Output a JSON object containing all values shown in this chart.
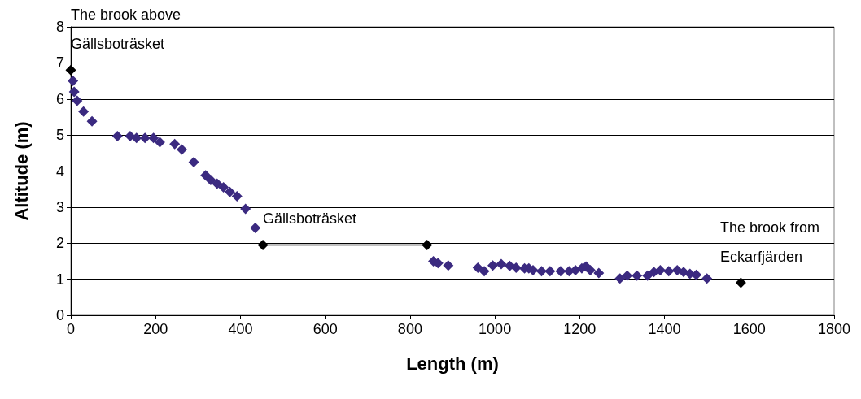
{
  "chart_data": {
    "type": "scatter",
    "xlabel": "Length (m)",
    "ylabel": "Altitude (m)",
    "xlim": [
      0,
      1800
    ],
    "xticks": [
      0,
      200,
      400,
      600,
      800,
      1000,
      1200,
      1400,
      1600,
      1800
    ],
    "ylim": [
      0,
      8
    ],
    "yticks": [
      0,
      1,
      2,
      3,
      4,
      5,
      6,
      7,
      8
    ],
    "grid": "y",
    "marker": "diamond",
    "series": [
      {
        "color": "#3b2a80",
        "x": [
          5,
          8,
          15,
          30,
          50,
          110,
          140,
          155,
          175,
          195,
          210,
          245,
          262,
          290,
          318,
          330,
          345,
          360,
          375,
          392,
          412,
          435,
          855,
          866,
          890,
          960,
          975,
          995,
          1015,
          1035,
          1050,
          1070,
          1080,
          1090,
          1110,
          1130,
          1155,
          1175,
          1190,
          1205,
          1215,
          1225,
          1245,
          1295,
          1312,
          1335,
          1360,
          1375,
          1390,
          1410,
          1430,
          1445,
          1460,
          1475,
          1500
        ],
        "values": [
          6.5,
          6.2,
          5.95,
          5.65,
          5.38,
          4.97,
          4.97,
          4.92,
          4.92,
          4.92,
          4.8,
          4.75,
          4.6,
          4.25,
          3.88,
          3.75,
          3.65,
          3.55,
          3.42,
          3.3,
          2.95,
          2.42,
          1.5,
          1.45,
          1.38,
          1.32,
          1.22,
          1.38,
          1.42,
          1.37,
          1.32,
          1.3,
          1.3,
          1.25,
          1.22,
          1.22,
          1.22,
          1.22,
          1.25,
          1.3,
          1.35,
          1.25,
          1.17,
          1.02,
          1.1,
          1.1,
          1.1,
          1.2,
          1.25,
          1.22,
          1.25,
          1.2,
          1.15,
          1.12,
          1.02
        ]
      },
      {
        "color": "#000000",
        "x": [
          0,
          1580
        ],
        "values": [
          6.8,
          0.9
        ]
      },
      {
        "type": "line",
        "line_style": "solid",
        "color": "#000000",
        "x": [
          453,
          840
        ],
        "values": [
          1.95,
          1.95
        ]
      }
    ],
    "annotations": [
      {
        "text": "The brook above\nGällsboträsket",
        "x": 0,
        "y": 6.8
      },
      {
        "text": "Gällsboträsket",
        "x": 453,
        "y": 1.95
      },
      {
        "text": "The brook from\nEckarfjärden",
        "x": 1580,
        "y": 0.9
      }
    ]
  }
}
